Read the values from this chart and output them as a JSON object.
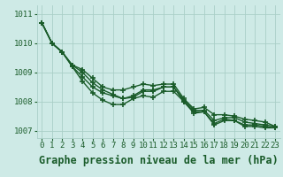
{
  "series": [
    [
      1010.7,
      1010.0,
      1009.7,
      1009.2,
      1008.7,
      1008.3,
      1008.05,
      1007.9,
      1007.9,
      1008.1,
      1008.2,
      1008.15,
      1008.35,
      1008.35,
      1008.0,
      1007.6,
      1007.65,
      1007.2,
      1007.35,
      1007.35,
      1007.15,
      1007.15,
      1007.1,
      1007.1
    ],
    [
      1010.7,
      1010.0,
      1009.7,
      1009.2,
      1008.85,
      1008.5,
      1008.3,
      1008.2,
      1008.1,
      1008.15,
      1008.35,
      1008.35,
      1008.5,
      1008.5,
      1008.0,
      1007.65,
      1007.65,
      1007.25,
      1007.4,
      1007.35,
      1007.2,
      1007.2,
      1007.15,
      1007.1
    ],
    [
      1010.7,
      1010.0,
      1009.7,
      1009.25,
      1009.0,
      1008.65,
      1008.4,
      1008.25,
      1008.1,
      1008.2,
      1008.4,
      1008.4,
      1008.5,
      1008.5,
      1008.05,
      1007.7,
      1007.7,
      1007.35,
      1007.45,
      1007.45,
      1007.3,
      1007.25,
      1007.2,
      1007.15
    ],
    [
      1010.7,
      1010.0,
      1009.7,
      1009.25,
      1009.1,
      1008.8,
      1008.5,
      1008.4,
      1008.4,
      1008.5,
      1008.6,
      1008.55,
      1008.6,
      1008.6,
      1008.1,
      1007.75,
      1007.8,
      1007.55,
      1007.55,
      1007.5,
      1007.4,
      1007.35,
      1007.3,
      1007.15
    ]
  ],
  "x": [
    0,
    1,
    2,
    3,
    4,
    5,
    6,
    7,
    8,
    9,
    10,
    11,
    12,
    13,
    14,
    15,
    16,
    17,
    18,
    19,
    20,
    21,
    22,
    23
  ],
  "ylim": [
    1006.75,
    1011.3
  ],
  "yticks": [
    1007,
    1008,
    1009,
    1010,
    1011
  ],
  "xticks": [
    0,
    1,
    2,
    3,
    4,
    5,
    6,
    7,
    8,
    9,
    10,
    11,
    12,
    13,
    14,
    15,
    16,
    17,
    18,
    19,
    20,
    21,
    22,
    23
  ],
  "xlabel": "Graphe pression niveau de la mer (hPa)",
  "bg_color": "#ceeae6",
  "line_color": "#1a5c2a",
  "grid_color": "#aacfc8",
  "tick_label_color": "#1a5c2a",
  "xlabel_color": "#1a5c2a",
  "marker": "+",
  "linewidth": 1.0,
  "markersize": 4,
  "markeredgewidth": 1.2,
  "tick_fontsize": 6.5,
  "xlabel_fontsize": 8.5
}
